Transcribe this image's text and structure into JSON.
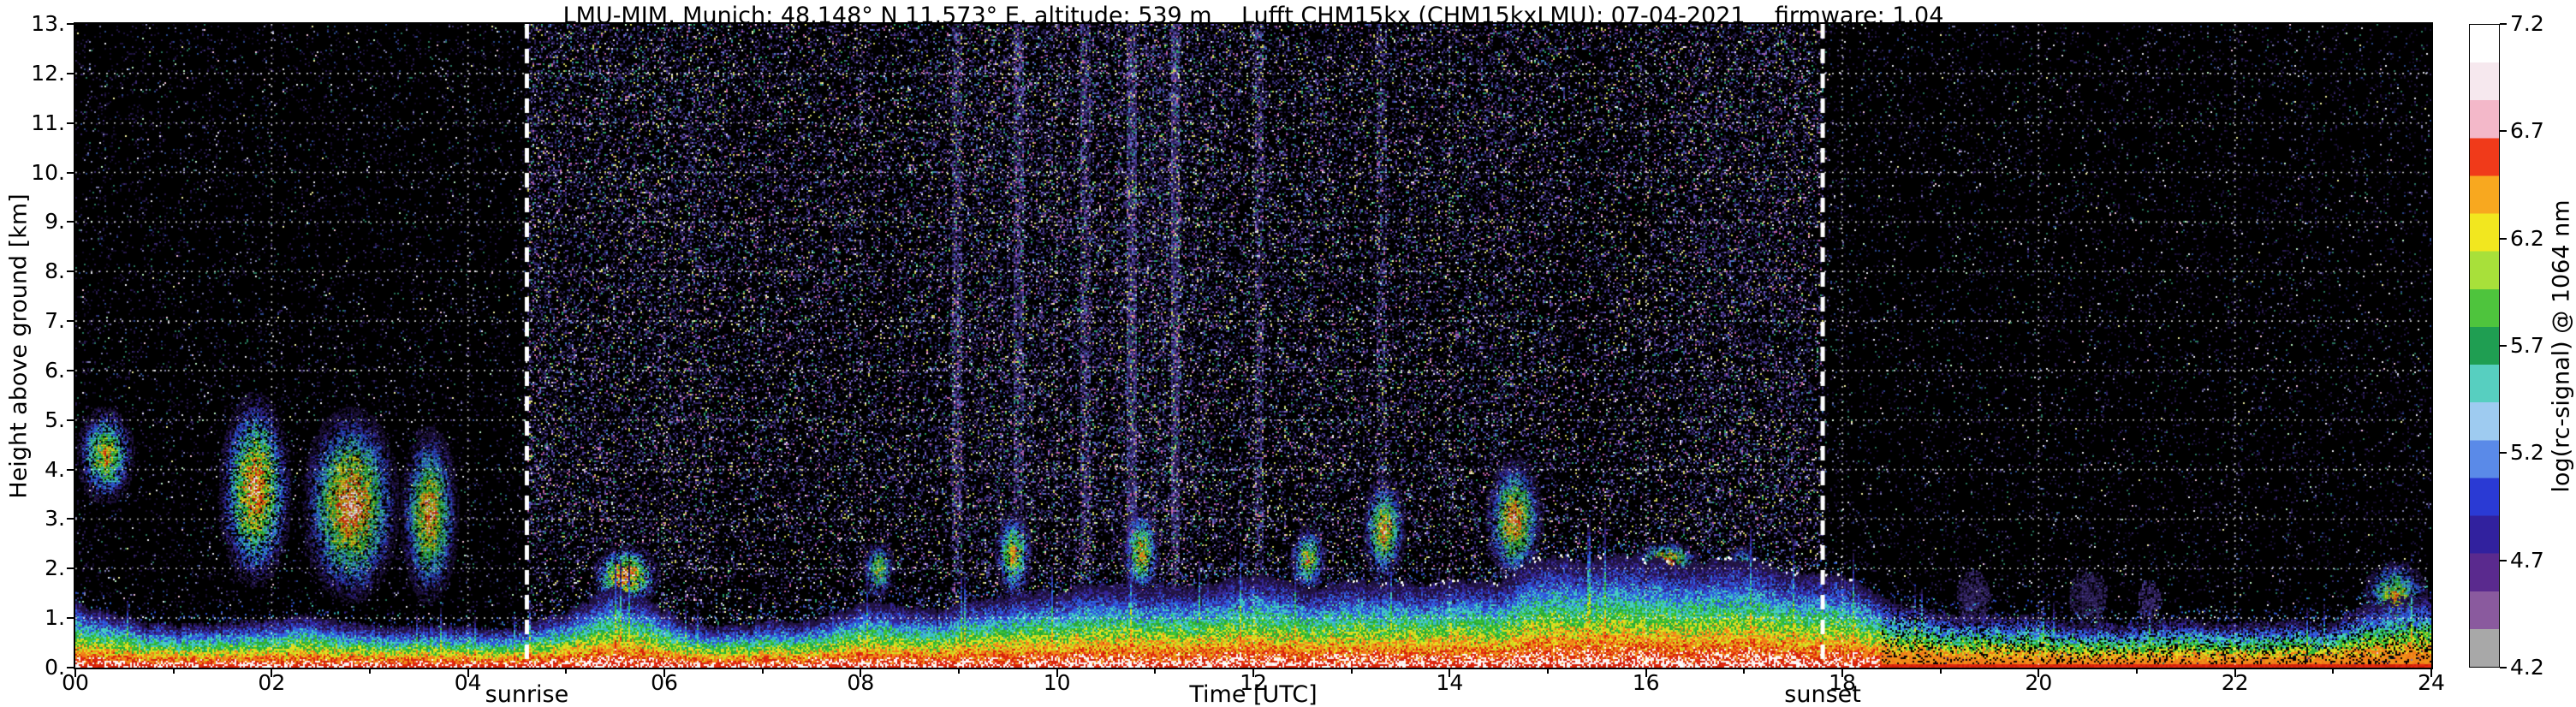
{
  "chart_data": {
    "type": "heatmap",
    "title": "LMU-MIM, Munich; 48.148° N 11.573° E, altitude: 539 m    Lufft CHM15kx (CHM15kxLMU): 07-04-2021    firmware: 1.04",
    "xlabel": "Time [UTC]",
    "ylabel": "Height above ground [km]",
    "xlim": [
      0,
      24
    ],
    "ylim": [
      0,
      13
    ],
    "xticks": {
      "values": [
        0,
        2,
        4,
        6,
        8,
        10,
        12,
        14,
        16,
        18,
        20,
        22,
        24
      ],
      "labels": [
        "00",
        "02",
        "04",
        "06",
        "08",
        "10",
        "12",
        "14",
        "16",
        "18",
        "20",
        "22",
        "24"
      ]
    },
    "yticks": {
      "values": [
        0,
        1,
        2,
        3,
        4,
        5,
        6,
        7,
        8,
        9,
        10,
        11,
        12,
        13
      ],
      "labels": [
        "0.",
        "1.",
        "2.",
        "3.",
        "4.",
        "5.",
        "6.",
        "7.",
        "8.",
        "9.",
        "10.",
        "11.",
        "12.",
        "13."
      ]
    },
    "grid": {
      "x_every_h": 2,
      "y_every_km": 1,
      "style": "white dotted"
    },
    "colorbar": {
      "label": "log(rc-signal) @ 1064 nm",
      "range": [
        4.2,
        7.2
      ],
      "ticks": [
        4.2,
        4.7,
        5.2,
        5.7,
        6.2,
        6.7,
        7.2
      ],
      "bands_bottom_to_top": [
        "#a8a8a8",
        "#8a5a9e",
        "#5a2a8e",
        "#31219e",
        "#2a3ad4",
        "#5a8ae8",
        "#9ecbf0",
        "#57cfc0",
        "#1f9e52",
        "#4ec43d",
        "#a8e03a",
        "#f2e71f",
        "#f8a81f",
        "#f03a1a",
        "#f3b8c9",
        "#f6e8ee",
        "#ffffff"
      ]
    },
    "annotations": {
      "sunrise": {
        "label": "sunrise",
        "time_utc": 4.6
      },
      "sunset": {
        "label": "sunset",
        "time_utc": 17.8
      }
    },
    "background": {
      "night_color": "#000000",
      "day_solar_noise_tint": "#2c2158",
      "day_region_utc": [
        4.6,
        17.8
      ]
    },
    "boundary_layer_top_km": {
      "t": [
        0,
        0.5,
        1,
        1.5,
        2,
        2.5,
        3,
        3.5,
        4,
        4.5,
        5,
        5.5,
        6,
        6.5,
        7,
        7.5,
        8,
        8.5,
        9,
        9.5,
        10,
        10.5,
        11,
        11.5,
        12,
        12.5,
        13,
        13.5,
        14,
        14.5,
        15,
        15.5,
        16,
        16.5,
        17,
        17.5,
        18,
        18.5,
        19,
        19.5,
        20,
        20.5,
        21,
        21.5,
        22,
        22.5,
        23,
        23.5,
        24
      ],
      "top": [
        1.4,
        1.1,
        0.9,
        0.9,
        1.0,
        0.9,
        0.9,
        0.8,
        0.8,
        0.9,
        1.0,
        1.5,
        1.2,
        0.9,
        0.9,
        1.0,
        1.2,
        1.3,
        1.4,
        1.5,
        1.5,
        1.6,
        1.6,
        1.6,
        1.7,
        1.7,
        1.8,
        1.8,
        1.9,
        1.9,
        2.0,
        2.0,
        2.1,
        2.0,
        2.0,
        1.9,
        1.7,
        1.3,
        1.1,
        1.0,
        1.0,
        0.9,
        0.9,
        0.9,
        0.9,
        1.0,
        1.0,
        1.4,
        1.7
      ]
    },
    "clouds": [
      {
        "t0": 0.0,
        "t1": 0.6,
        "y0": 3.3,
        "y1": 5.3,
        "intensity": 0.8
      },
      {
        "t0": 1.45,
        "t1": 2.2,
        "y0": 1.6,
        "y1": 5.6,
        "intensity": 0.95
      },
      {
        "t0": 2.3,
        "t1": 3.3,
        "y0": 1.3,
        "y1": 5.3,
        "intensity": 1.0
      },
      {
        "t0": 3.3,
        "t1": 3.9,
        "y0": 1.3,
        "y1": 4.9,
        "intensity": 0.9
      },
      {
        "t0": 5.25,
        "t1": 5.95,
        "y0": 1.2,
        "y1": 2.5,
        "intensity": 1.0
      },
      {
        "t0": 8.0,
        "t1": 8.35,
        "y0": 1.4,
        "y1": 2.6,
        "intensity": 0.7
      },
      {
        "t0": 9.35,
        "t1": 9.75,
        "y0": 1.4,
        "y1": 3.2,
        "intensity": 0.8
      },
      {
        "t0": 10.65,
        "t1": 11.05,
        "y0": 1.4,
        "y1": 3.3,
        "intensity": 0.8
      },
      {
        "t0": 12.35,
        "t1": 12.75,
        "y0": 1.5,
        "y1": 2.9,
        "intensity": 0.75
      },
      {
        "t0": 13.1,
        "t1": 13.55,
        "y0": 1.7,
        "y1": 3.9,
        "intensity": 0.85
      },
      {
        "t0": 14.35,
        "t1": 14.95,
        "y0": 1.7,
        "y1": 4.3,
        "intensity": 0.9
      },
      {
        "t0": 15.85,
        "t1": 16.55,
        "y0": 1.7,
        "y1": 2.6,
        "intensity": 1.0
      },
      {
        "t0": 16.8,
        "t1": 17.15,
        "y0": 1.4,
        "y1": 2.5,
        "intensity": 0.8
      },
      {
        "t0": 19.15,
        "t1": 19.5,
        "y0": 0.9,
        "y1": 2.0,
        "intensity": 0.3
      },
      {
        "t0": 20.3,
        "t1": 20.7,
        "y0": 0.9,
        "y1": 2.0,
        "intensity": 0.3
      },
      {
        "t0": 21.0,
        "t1": 21.25,
        "y0": 0.9,
        "y1": 1.8,
        "intensity": 0.25
      },
      {
        "t0": 23.3,
        "t1": 23.95,
        "y0": 0.7,
        "y1": 2.2,
        "intensity": 0.8
      }
    ],
    "daytime_streaks_utc": [
      8.97,
      9.6,
      10.28,
      10.75,
      11.2,
      12.05,
      13.3
    ],
    "surface_red_line": {
      "t0": 18.4,
      "t1": 24.0,
      "y_km": 0.05
    }
  }
}
